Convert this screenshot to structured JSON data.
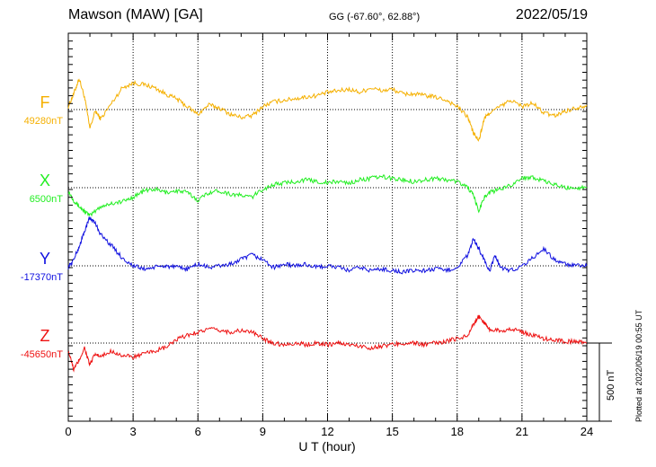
{
  "header": {
    "station": "Mawson (MAW)  [GA]",
    "coords": "GG (-67.60°,  62.88°)",
    "date": "2022/05/19"
  },
  "footer": {
    "plotted": "Plotted at 2022/06/19 00:55 UT"
  },
  "chart_data": {
    "type": "line",
    "title": "Mawson (MAW)  [GA]",
    "xlabel": "U T (hour)",
    "xlim": [
      0,
      24
    ],
    "x_ticks": [
      "0",
      "3",
      "6",
      "9",
      "12",
      "15",
      "18",
      "21",
      "24"
    ],
    "grid": true,
    "scale_bar": {
      "label": "500 nT",
      "value_nT": 500
    },
    "series": [
      {
        "name": "F",
        "baseline_label": "49280nT",
        "baseline": 49280,
        "color": "#f5b000",
        "x": [
          0,
          0.25,
          0.5,
          0.75,
          1,
          1.25,
          1.5,
          2,
          2.5,
          3,
          3.5,
          4,
          4.5,
          5,
          5.5,
          6,
          6.5,
          7,
          7.5,
          8,
          8.5,
          9,
          9.5,
          10,
          10.5,
          11,
          11.5,
          12,
          12.5,
          13,
          13.5,
          14,
          14.5,
          15,
          15.5,
          16,
          16.5,
          17,
          17.5,
          18,
          18.5,
          18.75,
          19,
          19.25,
          19.5,
          20,
          20.5,
          21,
          21.5,
          22,
          22.5,
          23,
          23.5,
          24
        ],
        "values": [
          49300,
          49380,
          49480,
          49360,
          49160,
          49270,
          49220,
          49320,
          49420,
          49450,
          49440,
          49420,
          49380,
          49350,
          49300,
          49250,
          49310,
          49290,
          49250,
          49230,
          49240,
          49300,
          49330,
          49340,
          49350,
          49360,
          49370,
          49390,
          49400,
          49410,
          49390,
          49420,
          49400,
          49410,
          49380,
          49380,
          49370,
          49360,
          49340,
          49300,
          49230,
          49130,
          49080,
          49220,
          49260,
          49300,
          49340,
          49300,
          49320,
          49260,
          49240,
          49270,
          49290,
          49310
        ]
      },
      {
        "name": "X",
        "baseline_label": "6500nT",
        "baseline": 6500,
        "color": "#22ee22",
        "x": [
          0,
          0.25,
          0.5,
          0.75,
          1,
          1.5,
          2,
          2.5,
          3,
          3.5,
          4,
          4.5,
          5,
          5.5,
          6,
          6.5,
          7,
          7.5,
          8,
          8.5,
          9,
          9.5,
          10,
          10.5,
          11,
          11.5,
          12,
          12.5,
          13,
          13.5,
          14,
          14.5,
          15,
          15.5,
          16,
          16.5,
          17,
          17.5,
          18,
          18.5,
          18.75,
          19,
          19.25,
          19.5,
          20,
          20.5,
          21,
          21.5,
          22,
          22.5,
          23,
          23.5,
          24
        ],
        "values": [
          6480,
          6420,
          6380,
          6350,
          6320,
          6380,
          6400,
          6410,
          6440,
          6480,
          6490,
          6470,
          6480,
          6470,
          6420,
          6470,
          6480,
          6460,
          6450,
          6440,
          6490,
          6520,
          6530,
          6540,
          6550,
          6540,
          6530,
          6540,
          6530,
          6550,
          6560,
          6570,
          6560,
          6550,
          6540,
          6550,
          6560,
          6550,
          6540,
          6500,
          6450,
          6350,
          6440,
          6470,
          6490,
          6520,
          6560,
          6570,
          6540,
          6520,
          6500,
          6500,
          6500
        ]
      },
      {
        "name": "Y",
        "baseline_label": "-17370nT",
        "baseline": -17370,
        "color": "#1010e0",
        "x": [
          0,
          0.25,
          0.5,
          0.75,
          1,
          1.25,
          1.5,
          2,
          2.5,
          3,
          3.5,
          4,
          4.5,
          5,
          5.5,
          6,
          6.5,
          7,
          7.5,
          8,
          8.5,
          9,
          9.5,
          10,
          10.5,
          11,
          11.5,
          12,
          12.5,
          13,
          13.5,
          14,
          14.5,
          15,
          15.5,
          16,
          16.5,
          17,
          17.5,
          18,
          18.5,
          18.75,
          19,
          19.25,
          19.5,
          19.75,
          20,
          20.5,
          21,
          21.5,
          22,
          22.5,
          23,
          23.5,
          24
        ],
        "values": [
          -17380,
          -17330,
          -17250,
          -17150,
          -17060,
          -17100,
          -17170,
          -17240,
          -17320,
          -17370,
          -17390,
          -17380,
          -17370,
          -17380,
          -17390,
          -17360,
          -17380,
          -17370,
          -17360,
          -17330,
          -17300,
          -17330,
          -17380,
          -17360,
          -17370,
          -17360,
          -17380,
          -17370,
          -17380,
          -17400,
          -17380,
          -17400,
          -17390,
          -17400,
          -17410,
          -17400,
          -17400,
          -17390,
          -17400,
          -17380,
          -17300,
          -17200,
          -17260,
          -17330,
          -17410,
          -17300,
          -17380,
          -17400,
          -17370,
          -17320,
          -17260,
          -17330,
          -17360,
          -17370,
          -17370
        ]
      },
      {
        "name": "Z",
        "baseline_label": "-45650nT",
        "baseline": -45650,
        "color": "#ee1111",
        "x": [
          0,
          0.25,
          0.5,
          0.75,
          1,
          1.25,
          1.5,
          2,
          2.5,
          3,
          3.5,
          4,
          4.5,
          5,
          5.5,
          6,
          6.5,
          7,
          7.5,
          8,
          8.5,
          9,
          9.5,
          10,
          10.5,
          11,
          11.5,
          12,
          12.5,
          13,
          13.5,
          14,
          14.5,
          15,
          15.5,
          16,
          16.5,
          17,
          17.5,
          18,
          18.5,
          18.75,
          19,
          19.25,
          19.5,
          20,
          20.5,
          21,
          21.5,
          22,
          22.5,
          23,
          23.5,
          24
        ],
        "values": [
          -45700,
          -45820,
          -45760,
          -45680,
          -45790,
          -45720,
          -45740,
          -45700,
          -45730,
          -45740,
          -45720,
          -45700,
          -45680,
          -45630,
          -45600,
          -45580,
          -45560,
          -45570,
          -45580,
          -45570,
          -45580,
          -45620,
          -45650,
          -45660,
          -45650,
          -45660,
          -45650,
          -45660,
          -45650,
          -45660,
          -45670,
          -45680,
          -45670,
          -45660,
          -45650,
          -45650,
          -45660,
          -45650,
          -45640,
          -45620,
          -45600,
          -45530,
          -45480,
          -45520,
          -45560,
          -45570,
          -45560,
          -45580,
          -45600,
          -45620,
          -45630,
          -45640,
          -45640,
          -45650
        ]
      }
    ]
  }
}
